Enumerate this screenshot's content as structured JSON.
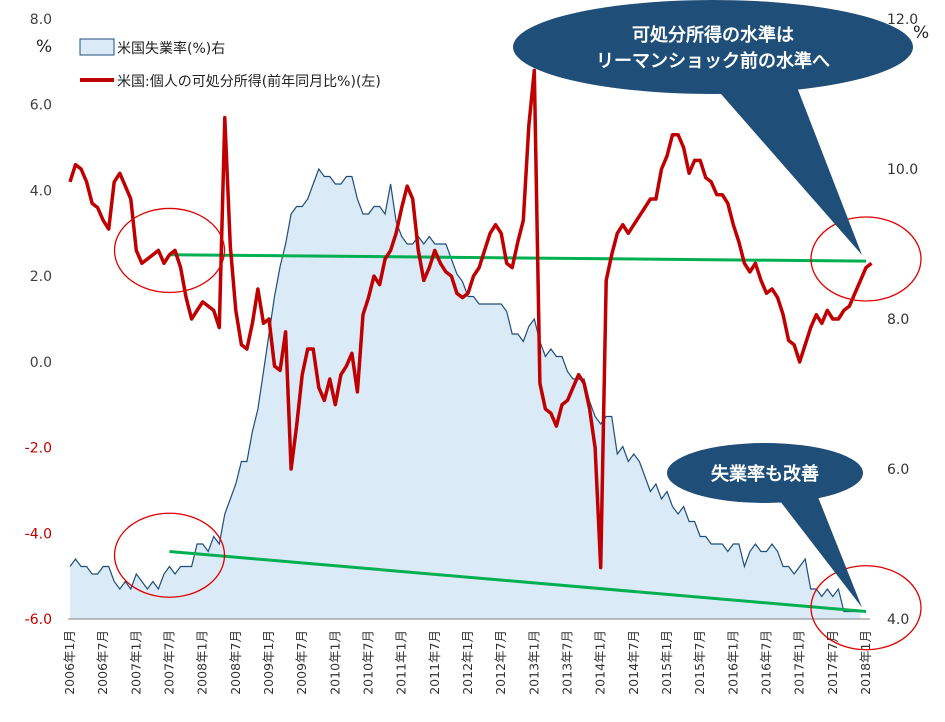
{
  "chart_data": {
    "type": "line",
    "legend": {
      "placement": "top-left",
      "entries": [
        {
          "label": "米国失業率(%)右",
          "style": "area",
          "fill": "#daeaf7",
          "stroke": "#1f4e79"
        },
        {
          "label": "米国:個人の可処分所得(前年同月比%)(左)",
          "style": "line",
          "stroke": "#c00000"
        }
      ]
    },
    "axes": {
      "left": {
        "unit": "%",
        "ylim": [
          -6.0,
          8.0
        ],
        "ticks": [
          "8.0",
          "6.0",
          "4.0",
          "2.0",
          "0.0",
          "-2.0",
          "-4.0",
          "-6.0"
        ],
        "tick_values": [
          8,
          6,
          4,
          2,
          0,
          -2,
          -4,
          -6
        ],
        "positive_color": "#404040",
        "negative_color": "#c00000"
      },
      "right": {
        "unit": "%",
        "ylim": [
          4.0,
          12.0
        ],
        "ticks": [
          "12.0",
          "10.0",
          "8.0",
          "6.0",
          "4.0"
        ],
        "tick_values": [
          12,
          10,
          8,
          6,
          4
        ]
      },
      "x": {
        "ticks": [
          "2006年1月",
          "2006年7月",
          "2007年1月",
          "2007年7月",
          "2008年1月",
          "2008年7月",
          "2009年1月",
          "2009年7月",
          "2010年1月",
          "2010年7月",
          "2011年1月",
          "2011年7月",
          "2012年1月",
          "2012年7月",
          "2013年1月",
          "2013年7月",
          "2014年1月",
          "2014年7月",
          "2015年1月",
          "2015年7月",
          "2016年1月",
          "2016年7月",
          "2017年1月",
          "2017年7月",
          "2018年1月"
        ],
        "range": [
          "2006-01",
          "2018-01"
        ]
      },
      "grid": false
    },
    "unemployment_series": {
      "name": "米国失業率(%)右",
      "axis": "right",
      "color": "#1f4e79",
      "fill": "#daeaf7",
      "start": "2006-01",
      "values": [
        4.7,
        4.8,
        4.7,
        4.7,
        4.6,
        4.6,
        4.7,
        4.7,
        4.5,
        4.4,
        4.5,
        4.4,
        4.6,
        4.5,
        4.4,
        4.5,
        4.4,
        4.6,
        4.7,
        4.6,
        4.7,
        4.7,
        4.7,
        5.0,
        5.0,
        4.9,
        5.1,
        5.0,
        5.4,
        5.6,
        5.8,
        6.1,
        6.1,
        6.5,
        6.8,
        7.3,
        7.8,
        8.3,
        8.7,
        9.0,
        9.4,
        9.5,
        9.5,
        9.6,
        9.8,
        10.0,
        9.9,
        9.9,
        9.8,
        9.8,
        9.9,
        9.9,
        9.6,
        9.4,
        9.4,
        9.5,
        9.5,
        9.4,
        9.8,
        9.3,
        9.1,
        9.0,
        9.0,
        9.1,
        9.0,
        9.1,
        9.0,
        9.0,
        9.0,
        8.8,
        8.6,
        8.5,
        8.3,
        8.3,
        8.2,
        8.2,
        8.2,
        8.2,
        8.2,
        8.1,
        7.8,
        7.8,
        7.7,
        7.9,
        8.0,
        7.7,
        7.5,
        7.6,
        7.5,
        7.5,
        7.3,
        7.2,
        7.2,
        7.2,
        6.9,
        6.7,
        6.6,
        6.7,
        6.7,
        6.2,
        6.3,
        6.1,
        6.2,
        6.1,
        5.9,
        5.7,
        5.8,
        5.6,
        5.7,
        5.5,
        5.4,
        5.5,
        5.3,
        5.3,
        5.1,
        5.1,
        5.0,
        5.0,
        5.0,
        4.9,
        5.0,
        5.0,
        4.7,
        4.9,
        5.0,
        4.9,
        4.9,
        5.0,
        4.9,
        4.7,
        4.7,
        4.6,
        4.7,
        4.8,
        4.4,
        4.4,
        4.3,
        4.4,
        4.3,
        4.4,
        4.1,
        4.1,
        4.1,
        4.1
      ]
    },
    "income_series": {
      "name": "米国:個人の可処分所得(前年同月比%)(左)",
      "axis": "left",
      "color": "#c00000",
      "start": "2006-01",
      "values": [
        4.2,
        4.6,
        4.5,
        4.2,
        3.7,
        3.6,
        3.3,
        3.1,
        4.2,
        4.4,
        4.1,
        3.8,
        2.6,
        2.3,
        2.4,
        2.5,
        2.6,
        2.3,
        2.5,
        2.6,
        2.2,
        1.5,
        1.0,
        1.2,
        1.4,
        1.3,
        1.2,
        0.8,
        5.7,
        2.7,
        1.2,
        0.4,
        0.3,
        0.9,
        1.7,
        0.9,
        1.0,
        -0.1,
        -0.2,
        0.7,
        -2.5,
        -1.5,
        -0.3,
        0.3,
        0.3,
        -0.6,
        -0.9,
        -0.4,
        -1.0,
        -0.3,
        -0.1,
        0.2,
        -0.7,
        1.1,
        1.5,
        2.0,
        1.8,
        2.4,
        2.6,
        3.0,
        3.6,
        4.1,
        3.8,
        2.6,
        1.9,
        2.2,
        2.6,
        2.3,
        2.1,
        2.0,
        1.6,
        1.5,
        1.6,
        2.0,
        2.2,
        2.6,
        3.0,
        3.2,
        3.0,
        2.3,
        2.2,
        2.8,
        3.3,
        5.5,
        6.8,
        -0.5,
        -1.1,
        -1.2,
        -1.5,
        -1.0,
        -0.9,
        -0.6,
        -0.3,
        -0.5,
        -1.1,
        -2.0,
        -4.8,
        1.9,
        2.5,
        3.0,
        3.2,
        3.0,
        3.2,
        3.4,
        3.6,
        3.8,
        3.8,
        4.5,
        4.8,
        5.3,
        5.3,
        5.0,
        4.4,
        4.7,
        4.7,
        4.3,
        4.2,
        3.9,
        3.9,
        3.7,
        3.2,
        2.8,
        2.3,
        2.1,
        2.3,
        1.9,
        1.6,
        1.7,
        1.5,
        1.1,
        0.5,
        0.4,
        0.0,
        0.4,
        0.8,
        1.1,
        0.9,
        1.2,
        1.0,
        1.0,
        1.2,
        1.3,
        1.6,
        1.9,
        2.2,
        2.3
      ]
    },
    "trend_lines": [
      {
        "from": {
          "date": "2007-07",
          "axis": "left",
          "value": 2.5
        },
        "to": {
          "date": "2018-01",
          "axis": "left",
          "value": 2.35
        },
        "color": "#00b050"
      },
      {
        "from": {
          "date": "2007-07",
          "axis": "right",
          "value": 4.9
        },
        "to": {
          "date": "2018-01",
          "axis": "right",
          "value": 4.1
        },
        "color": "#00b050"
      }
    ],
    "highlight_circles": [
      {
        "date": "2007-07",
        "axis": "left",
        "value": 2.6,
        "color": "#e00000"
      },
      {
        "date": "2007-07",
        "axis": "right",
        "value": 4.85,
        "color": "#e00000"
      },
      {
        "date": "2018-01",
        "axis": "left",
        "value": 2.4,
        "color": "#e00000"
      },
      {
        "date": "2018-01",
        "axis": "right",
        "value": 4.15,
        "color": "#e00000"
      }
    ],
    "annotations": [
      {
        "text": [
          "可処分所得の水準は",
          "リーマンショック前の水準へ"
        ],
        "fill": "#1f4e79",
        "points_to": {
          "date": "2018-01",
          "axis": "left",
          "value": 2.4
        }
      },
      {
        "text": [
          "失業率も改善"
        ],
        "fill": "#1f4e79",
        "points_to": {
          "date": "2018-01",
          "axis": "right",
          "value": 4.1
        }
      }
    ]
  }
}
